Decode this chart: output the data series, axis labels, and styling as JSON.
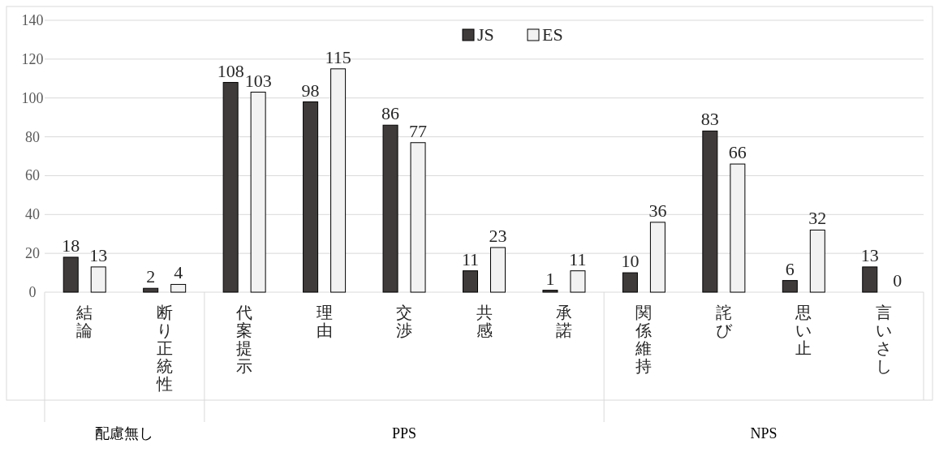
{
  "chart_data": {
    "type": "bar",
    "categories": [
      "結論",
      "断り正統性",
      "代案提示",
      "理由",
      "交渉",
      "共感",
      "承諾",
      "関係維持",
      "詫び",
      "思い止",
      "言いさし"
    ],
    "series": [
      {
        "name": "JS",
        "color": "#403b3b",
        "values": [
          18,
          2,
          108,
          98,
          86,
          11,
          1,
          10,
          83,
          6,
          13
        ]
      },
      {
        "name": "ES",
        "color": "#f2f2f2",
        "values": [
          13,
          4,
          103,
          115,
          77,
          23,
          11,
          36,
          66,
          32,
          0
        ]
      }
    ],
    "ylim": [
      0,
      140
    ],
    "yticks": [
      0,
      20,
      40,
      60,
      80,
      100,
      120,
      140
    ],
    "grid": "y",
    "legend": "top",
    "data_labels": true,
    "annotations": [
      "配慮無し",
      "PPS",
      "NPS"
    ]
  }
}
